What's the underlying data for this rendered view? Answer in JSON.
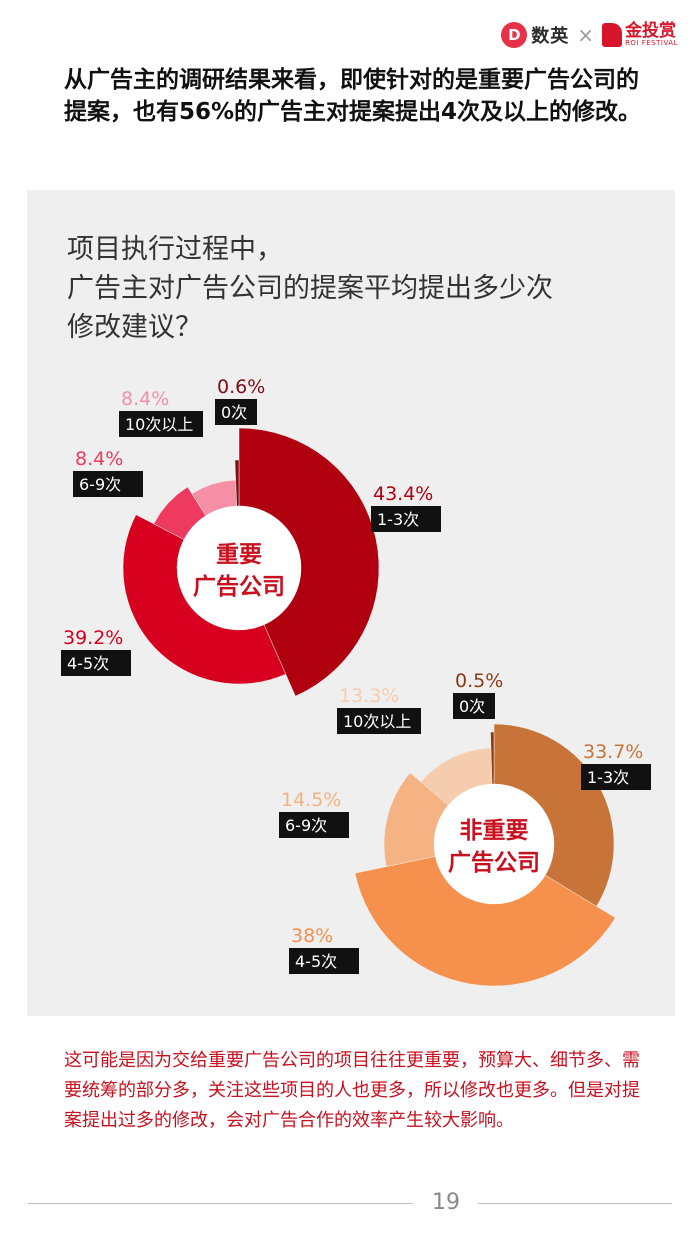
{
  "header": {
    "logo_left": {
      "badge": "D",
      "name": "数英"
    },
    "separator": "×",
    "logo_right": {
      "name": "金投赏",
      "sub": "ROI FESTIVAL"
    }
  },
  "headline": "从广告主的调研结果来看，即使针对的是重要广告公司的提案，也有56%的广告主对提案提出4次及以上的修改。",
  "note": "这可能是因为交给重要广告公司的项目往往更重要，预算大、细节多、需要统筹的部分多，关注这些项目的人也更多，所以修改也更多。但是对提案提出过多的修改，会对广告合作的效率产生较大影响。",
  "page_number": "19",
  "chart_data": {
    "type": "pie",
    "title_lines": [
      "项目执行过程中，",
      "广告主对广告公司的提案平均提出多少次",
      "修改建议？"
    ],
    "charts": [
      {
        "center_lines": [
          "重要",
          "广告公司"
        ],
        "center_color": "#c8101f",
        "slices": [
          {
            "category": "1-3次",
            "value": 43.4,
            "label": "43.4%",
            "color": "#b00010"
          },
          {
            "category": "4-5次",
            "value": 39.2,
            "label": "39.2%",
            "color": "#d7001e"
          },
          {
            "category": "6-9次",
            "value": 8.4,
            "label": "8.4%",
            "color": "#ee3a5e"
          },
          {
            "category": "10次以上",
            "value": 8.4,
            "label": "8.4%",
            "color": "#f58fa6"
          },
          {
            "category": "0次",
            "value": 0.6,
            "label": "0.6%",
            "color": "#7f0d12"
          }
        ]
      },
      {
        "center_lines": [
          "非重要",
          "广告公司"
        ],
        "center_color": "#c8101f",
        "slices": [
          {
            "category": "1-3次",
            "value": 33.7,
            "label": "33.7%",
            "color": "#c87438"
          },
          {
            "category": "4-5次",
            "value": 38,
            "label": "38%",
            "color": "#f5914c"
          },
          {
            "category": "6-9次",
            "value": 14.5,
            "label": "14.5%",
            "color": "#f5b282"
          },
          {
            "category": "10次以上",
            "value": 13.3,
            "label": "13.3%",
            "color": "#f6ccae"
          },
          {
            "category": "0次",
            "value": 0.5,
            "label": "0.5%",
            "color": "#8a3b14"
          }
        ]
      }
    ]
  }
}
